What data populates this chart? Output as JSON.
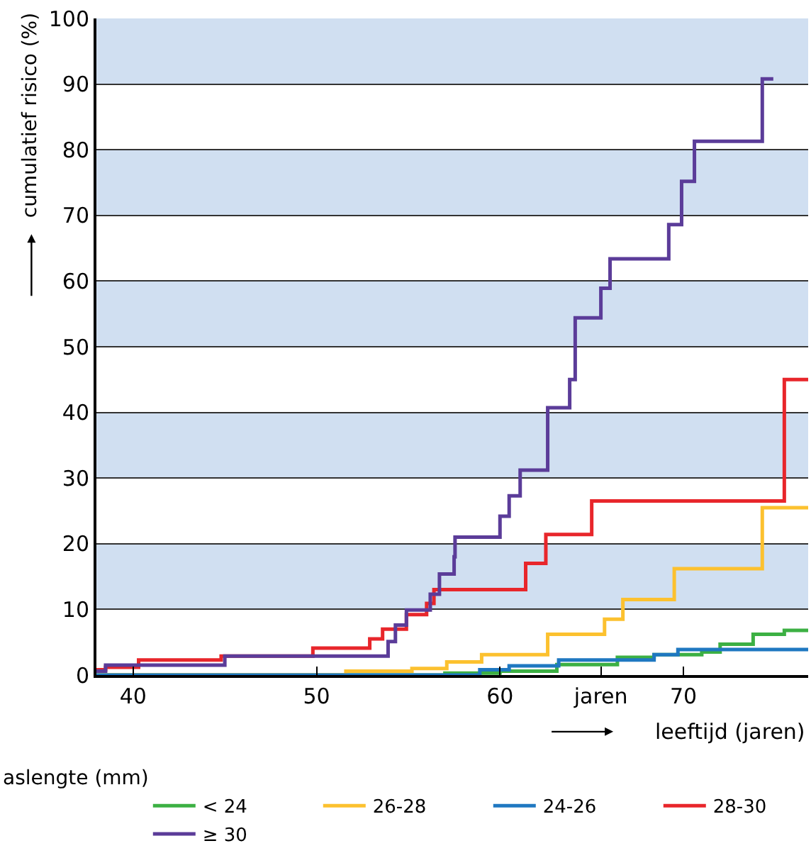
{
  "chart_data": {
    "type": "step",
    "xlabel": "leeftijd (jaren)",
    "ylabel": "cumulatief risico (%)",
    "legend_title": "aslengte (mm)",
    "xlim": [
      38,
      76.8
    ],
    "ylim": [
      0,
      100
    ],
    "xticks": [
      40,
      50,
      60,
      {
        "value": 65.5,
        "label": "jaren"
      },
      70
    ],
    "yticks": [
      0,
      10,
      20,
      30,
      40,
      50,
      60,
      70,
      80,
      90,
      100
    ],
    "grid": "y",
    "legend": "bottom",
    "line_style": "solid",
    "marker": "none",
    "bands": [
      {
        "axis": "y",
        "from": 10,
        "to": 20,
        "color": "#d0dff1"
      },
      {
        "axis": "y",
        "from": 30,
        "to": 40,
        "color": "#d0dff1"
      },
      {
        "axis": "y",
        "from": 50,
        "to": 60,
        "color": "#d0dff1"
      },
      {
        "axis": "y",
        "from": 70,
        "to": 80,
        "color": "#d0dff1"
      },
      {
        "axis": "y",
        "from": 90,
        "to": 100,
        "color": "#d0dff1"
      }
    ],
    "series": [
      {
        "name": "< 24",
        "color": "#3cb043",
        "x": [
          38,
          57.0,
          60.0,
          63.1,
          66.4,
          68.4,
          71.0,
          72.0,
          73.8,
          75.5,
          76.8
        ],
        "values": [
          0,
          0.3,
          0.6,
          1.6,
          2.7,
          3.1,
          3.5,
          4.7,
          6.2,
          6.8,
          6.8
        ]
      },
      {
        "name": "26-28",
        "color": "#fcc12f",
        "x": [
          38,
          51.6,
          55.2,
          57.1,
          59.0,
          62.6,
          65.7,
          66.7,
          69.5,
          74.3,
          76.8
        ],
        "values": [
          0,
          0.6,
          1.0,
          2.0,
          3.1,
          6.2,
          8.5,
          11.5,
          16.2,
          25.5,
          25.5
        ]
      },
      {
        "name": "24-26",
        "color": "#1f78c1",
        "x": [
          38,
          58.9,
          60.5,
          63.2,
          68.4,
          69.7,
          76.8
        ],
        "values": [
          0,
          0.8,
          1.4,
          2.3,
          3.1,
          3.9,
          3.9
        ]
      },
      {
        "name": "28-30",
        "color": "#e8262b",
        "x": [
          38,
          38.5,
          40.3,
          44.8,
          49.8,
          52.9,
          53.6,
          54.9,
          56.0,
          56.4,
          61.4,
          62.5,
          65.0,
          75.5,
          76.8
        ],
        "values": [
          0.8,
          1.2,
          2.3,
          2.9,
          4.1,
          5.5,
          7.0,
          9.2,
          10.9,
          13,
          17,
          21.4,
          26.5,
          45,
          45
        ]
      },
      {
        "name": "≥ 30",
        "color": "#5b3c99",
        "x": [
          38,
          38.5,
          45.0,
          53.9,
          54.3,
          54.9,
          56.2,
          56.7,
          57.5,
          57.55,
          60.0,
          60.5,
          61.1,
          62.6,
          63.8,
          64.1,
          65.5,
          66.0,
          69.2,
          69.9,
          70.6,
          74.3,
          74.9
        ],
        "values": [
          0.6,
          1.5,
          2.9,
          5.1,
          7.6,
          9.9,
          12.3,
          15.4,
          18,
          21,
          24.2,
          27.3,
          31.2,
          40.7,
          45,
          54.4,
          58.9,
          63.4,
          68.6,
          75.2,
          81.3,
          90.8,
          90.8
        ]
      }
    ]
  }
}
